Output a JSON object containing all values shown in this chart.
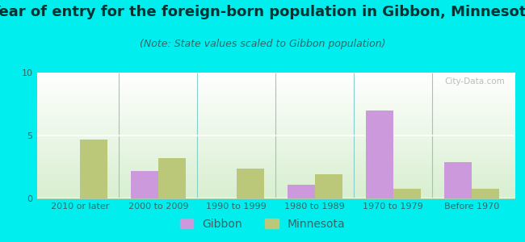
{
  "title": "Year of entry for the foreign-born population in Gibbon, Minnesota",
  "subtitle": "(Note: State values scaled to Gibbon population)",
  "categories": [
    "2010 or later",
    "2000 to 2009",
    "1990 to 1999",
    "1980 to 1989",
    "1970 to 1979",
    "Before 1970"
  ],
  "gibbon_values": [
    0,
    2.2,
    0,
    1.1,
    7.0,
    2.9
  ],
  "minnesota_values": [
    4.7,
    3.2,
    2.4,
    1.9,
    0.8,
    0.8
  ],
  "gibbon_color": "#cc99dd",
  "minnesota_color": "#bbc87a",
  "background_color": "#00eeee",
  "ylim": [
    0,
    10
  ],
  "yticks": [
    0,
    5,
    10
  ],
  "bar_width": 0.35,
  "title_fontsize": 13,
  "subtitle_fontsize": 9,
  "tick_fontsize": 8,
  "legend_fontsize": 10,
  "watermark": "City-Data.com"
}
